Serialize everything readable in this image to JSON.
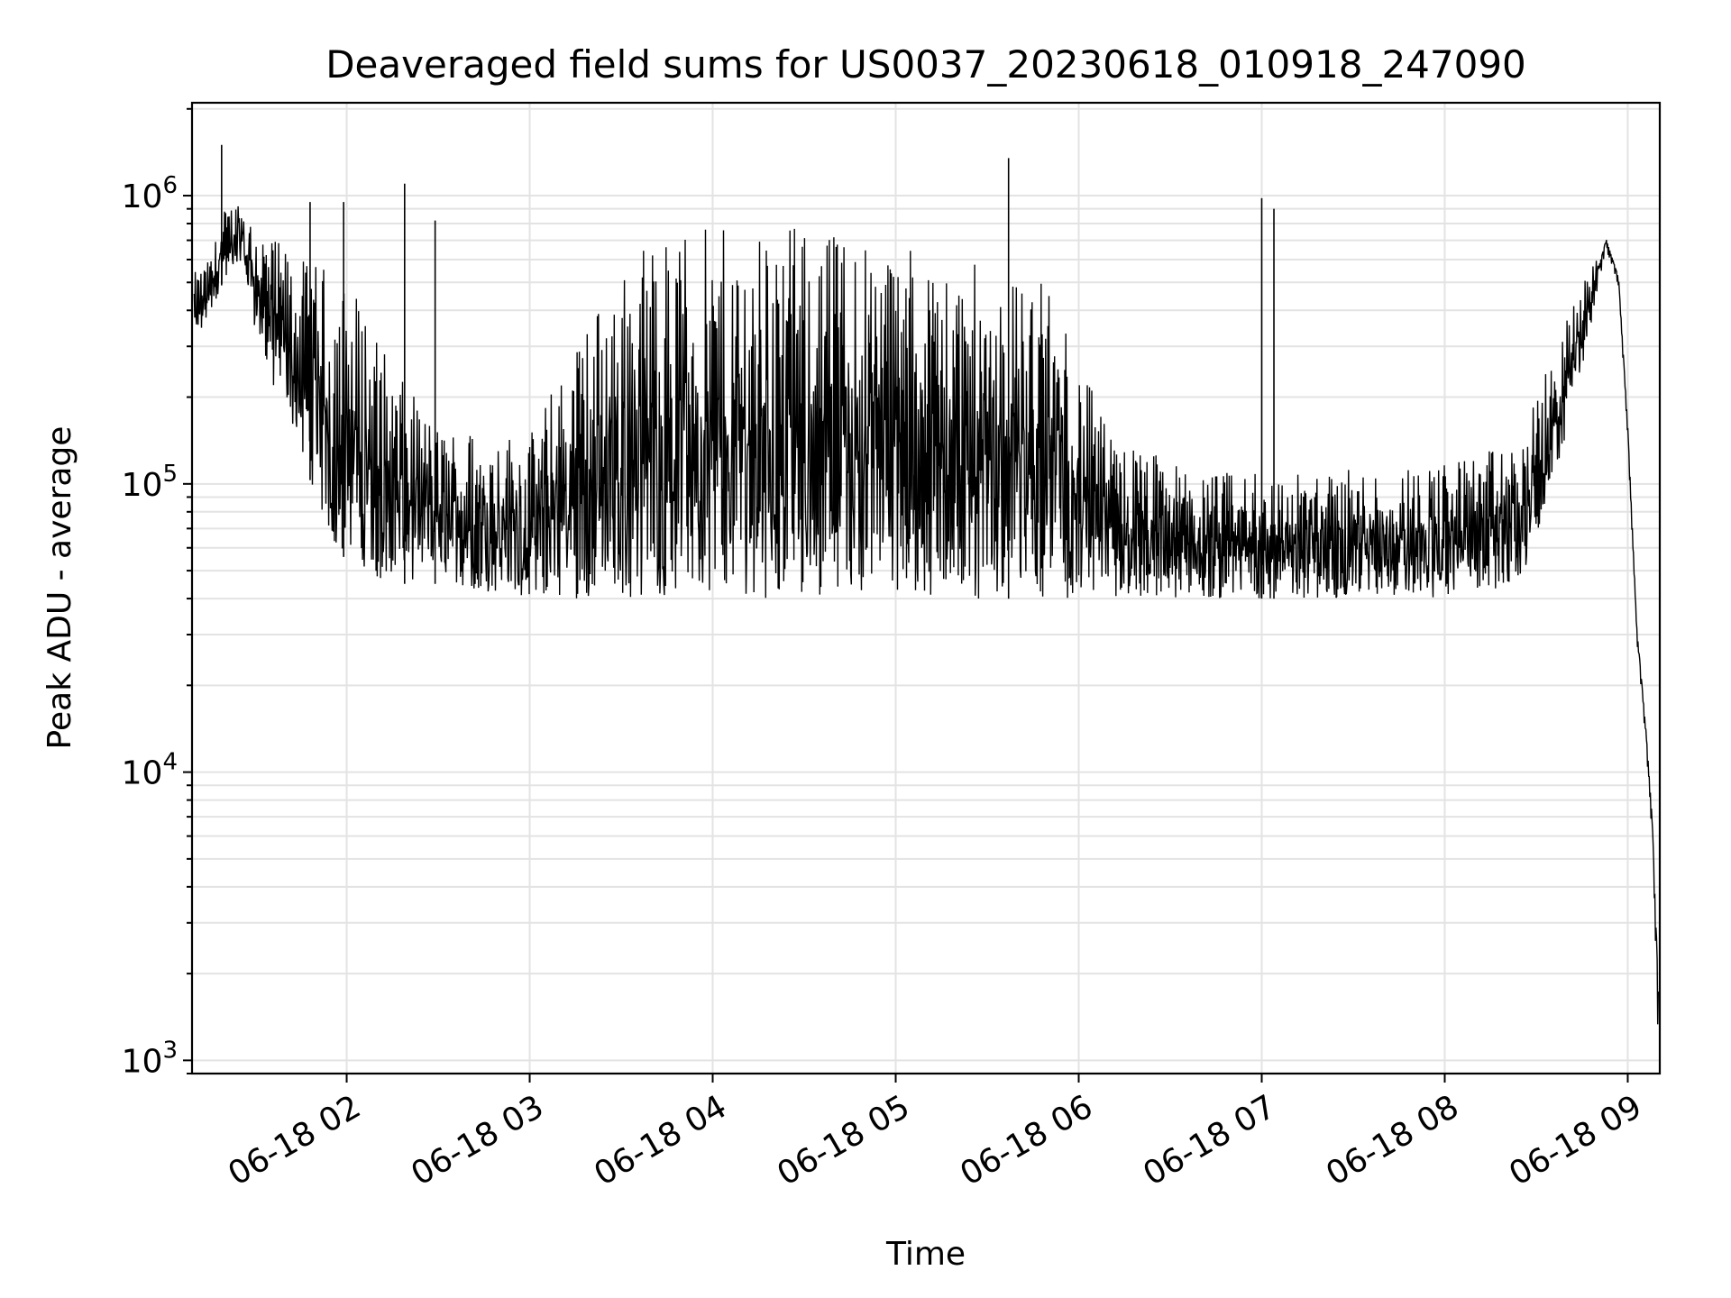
{
  "chart_data": {
    "type": "line",
    "title": "Deaveraged field sums for US0037_20230618_010918_247090",
    "xlabel": "Time",
    "ylabel": "Peak ADU - average",
    "yscale": "log",
    "ylim": [
      900,
      2100000
    ],
    "xlim": [
      "2023-06-18T01:09:18",
      "2023-06-18T09:10:30"
    ],
    "grid": true,
    "y_ticks": [
      {
        "base": "10",
        "exp": "3",
        "value": 1000
      },
      {
        "base": "10",
        "exp": "4",
        "value": 10000
      },
      {
        "base": "10",
        "exp": "5",
        "value": 100000
      },
      {
        "base": "10",
        "exp": "6",
        "value": 1000000
      }
    ],
    "x_ticks": [
      {
        "label": "06-18 02",
        "value": "2023-06-18T02:00:00"
      },
      {
        "label": "06-18 03",
        "value": "2023-06-18T03:00:00"
      },
      {
        "label": "06-18 04",
        "value": "2023-06-18T04:00:00"
      },
      {
        "label": "06-18 05",
        "value": "2023-06-18T05:00:00"
      },
      {
        "label": "06-18 06",
        "value": "2023-06-18T06:00:00"
      },
      {
        "label": "06-18 07",
        "value": "2023-06-18T07:00:00"
      },
      {
        "label": "06-18 08",
        "value": "2023-06-18T08:00:00"
      },
      {
        "label": "06-18 09",
        "value": "2023-06-18T09:00:00"
      }
    ],
    "line_color": "#000000",
    "series": [
      {
        "name": "",
        "envelope": [
          {
            "t": "2023-06-18T01:10:00",
            "high": 540000,
            "low": 300000
          },
          {
            "t": "2023-06-18T01:15:00",
            "high": 600000,
            "low": 380000
          },
          {
            "t": "2023-06-18T01:20:00",
            "high": 900000,
            "low": 520000
          },
          {
            "t": "2023-06-18T01:25:00",
            "high": 1000000,
            "low": 600000
          },
          {
            "t": "2023-06-18T01:30:00",
            "high": 850000,
            "low": 320000
          },
          {
            "t": "2023-06-18T01:37:00",
            "high": 700000,
            "low": 200000
          },
          {
            "t": "2023-06-18T01:45:00",
            "high": 600000,
            "low": 130000
          },
          {
            "t": "2023-06-18T01:55:00",
            "high": 560000,
            "low": 60000
          },
          {
            "t": "2023-06-18T02:05:00",
            "high": 450000,
            "low": 50000
          },
          {
            "t": "2023-06-18T02:15:00",
            "high": 250000,
            "low": 45000
          },
          {
            "t": "2023-06-18T02:30:00",
            "high": 160000,
            "low": 45000
          },
          {
            "t": "2023-06-18T03:00:00",
            "high": 150000,
            "low": 40000
          },
          {
            "t": "2023-06-18T03:20:00",
            "high": 400000,
            "low": 40000
          },
          {
            "t": "2023-06-18T03:40:00",
            "high": 750000,
            "low": 40000
          },
          {
            "t": "2023-06-18T04:20:00",
            "high": 780000,
            "low": 40000
          },
          {
            "t": "2023-06-18T04:50:00",
            "high": 760000,
            "low": 42000
          },
          {
            "t": "2023-06-18T05:20:00",
            "high": 600000,
            "low": 40000
          },
          {
            "t": "2023-06-18T05:50:00",
            "high": 500000,
            "low": 40000
          },
          {
            "t": "2023-06-18T06:10:00",
            "high": 150000,
            "low": 40000
          },
          {
            "t": "2023-06-18T06:40:00",
            "high": 110000,
            "low": 40000
          },
          {
            "t": "2023-06-18T07:20:00",
            "high": 110000,
            "low": 40000
          },
          {
            "t": "2023-06-18T08:00:00",
            "high": 120000,
            "low": 40000
          },
          {
            "t": "2023-06-18T08:25:00",
            "high": 140000,
            "low": 45000
          },
          {
            "t": "2023-06-18T08:35:00",
            "high": 280000,
            "low": 90000
          },
          {
            "t": "2023-06-18T08:45:00",
            "high": 500000,
            "low": 250000
          },
          {
            "t": "2023-06-18T08:53:00",
            "high": 760000,
            "low": 650000
          },
          {
            "t": "2023-06-18T08:57:00",
            "high": 560000,
            "low": 480000
          },
          {
            "t": "2023-06-18T09:00:00",
            "high": 180000,
            "low": 140000
          },
          {
            "t": "2023-06-18T09:03:00",
            "high": 35000,
            "low": 28000
          },
          {
            "t": "2023-06-18T09:06:00",
            "high": 16000,
            "low": 12000
          },
          {
            "t": "2023-06-18T09:08:00",
            "high": 8000,
            "low": 6000
          },
          {
            "t": "2023-06-18T09:10:00",
            "high": 3000,
            "low": 1000
          }
        ],
        "spikes": [
          {
            "t": "2023-06-18T01:19:00",
            "value": 1500000
          },
          {
            "t": "2023-06-18T02:19:00",
            "value": 1100000
          },
          {
            "t": "2023-06-18T05:37:00",
            "value": 1350000
          },
          {
            "t": "2023-06-18T07:00:00",
            "value": 980000
          },
          {
            "t": "2023-06-18T01:48:00",
            "value": 950000
          },
          {
            "t": "2023-06-18T01:59:00",
            "value": 950000
          },
          {
            "t": "2023-06-18T02:29:00",
            "value": 820000
          },
          {
            "t": "2023-06-18T07:04:00",
            "value": 900000
          }
        ]
      }
    ]
  }
}
